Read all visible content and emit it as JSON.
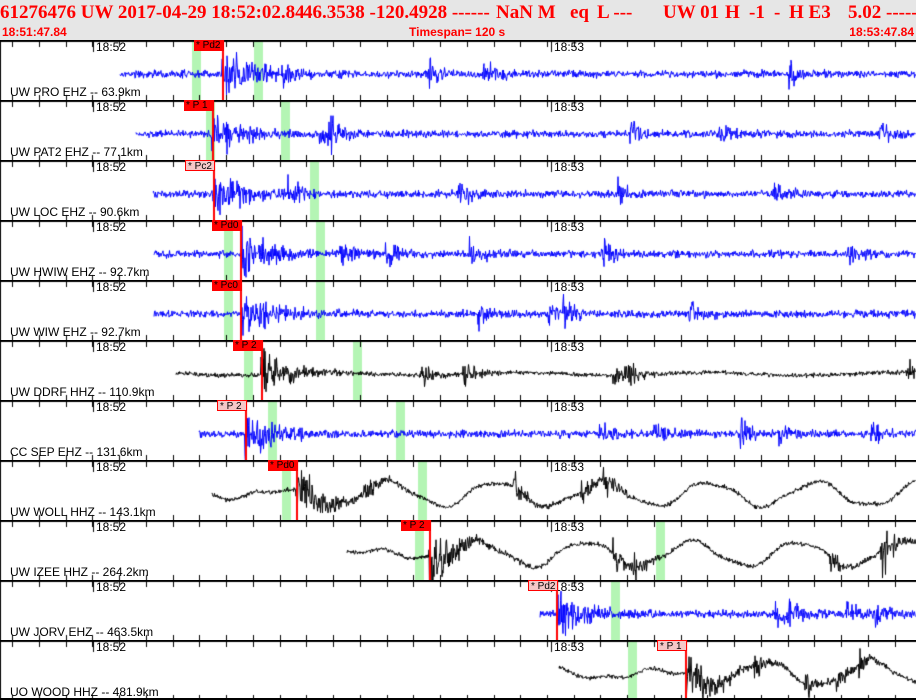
{
  "header": {
    "title_parts": [
      "61276476 UW 2017-04-29 18:52:02.84",
      "46.3538 -120.4928 ------",
      "NaN M",
      "eq",
      "L ---",
      "UW 01",
      "H",
      "-1",
      "-",
      "H E3",
      "5.02",
      "-----"
    ],
    "start_time": "18:51:47.84",
    "timespan": "Timespan= 120 s",
    "end_time": "18:53:47.84"
  },
  "view": {
    "start": "18:51:47.84",
    "span_seconds": 120
  },
  "colors": {
    "header_text": "#ff0000",
    "header_bg": "#e6e6e6",
    "short_period": "#0000ff",
    "broadband": "#000000",
    "pick_line": "#ff0000",
    "window_band": "#b4f5b4"
  },
  "minute_labels": [
    "18:52",
    "18:53"
  ],
  "channels": [
    {
      "label": "UW PRO EHZ -- 63.9km",
      "color": "#0000ff",
      "trace_start": "18:52:03.6",
      "pick": {
        "label": "* Pd2",
        "time": "18:52:16.9",
        "style": "solid"
      },
      "bands": [
        "18:52:13.5",
        "18:52:21.6"
      ],
      "kind": "sp"
    },
    {
      "label": "UW PAT2 EHZ -- 77.1km",
      "color": "#0000ff",
      "trace_start": "18:52:05.7",
      "pick": {
        "label": "* P 1",
        "time": "18:52:15.6",
        "style": "solid"
      },
      "bands": [
        "18:52:15.4",
        "18:52:25.2"
      ],
      "kind": "sp"
    },
    {
      "label": "UW LOC EHZ -- 90.6km",
      "color": "#0000ff",
      "trace_start": "18:52:07.9",
      "pick": {
        "label": "* Pc2",
        "time": "18:52:15.7",
        "style": "light"
      },
      "bands": [
        "18:52:29.0"
      ],
      "kind": "sp"
    },
    {
      "label": "UW HWIW EHZ -- 92.7km",
      "color": "#0000ff",
      "trace_start": "18:52:08.1",
      "pick": {
        "label": "* Pd0",
        "time": "18:52:19.3",
        "style": "solid"
      },
      "bands": [
        "18:52:17.7",
        "18:52:29.8"
      ],
      "kind": "sp"
    },
    {
      "label": "UW WIW EHZ -- 92.7km",
      "color": "#0000ff",
      "trace_start": "18:52:08.1",
      "pick": {
        "label": "* Pc0",
        "time": "18:52:19.3",
        "style": "solid"
      },
      "bands": [
        "18:52:17.7",
        "18:52:29.8"
      ],
      "kind": "sp"
    },
    {
      "label": "UW DDRF HHZ -- 110.9km",
      "color": "#000000",
      "trace_start": "18:52:11.0",
      "pick": {
        "label": "* P 2",
        "time": "18:52:22.0",
        "style": "solid"
      },
      "bands": [
        "18:52:20.3",
        "18:52:34.6"
      ],
      "kind": "bb"
    },
    {
      "label": "CC SEP EHZ -- 131.6km",
      "color": "#0000ff",
      "trace_start": "18:52:14.0",
      "pick": {
        "label": "* P 2",
        "time": "18:52:19.9",
        "style": "light"
      },
      "bands": [
        "18:52:23.5",
        "18:52:40.2"
      ],
      "kind": "sp"
    },
    {
      "label": "UW WOLL HHZ -- 143.1km",
      "color": "#000000",
      "trace_start": "18:52:15.7",
      "pick": {
        "label": "* Pd0",
        "time": "18:52:26.6",
        "style": "solid"
      },
      "bands": [
        "18:52:25.3",
        "18:52:43.1"
      ],
      "kind": "lp"
    },
    {
      "label": "UW IZEE HHZ -- 264.2km",
      "color": "#000000",
      "trace_start": "18:52:33.3",
      "pick": {
        "label": "* P 2",
        "time": "18:52:44.0",
        "style": "solid"
      },
      "bands": [
        "18:52:42.7",
        "18:53:14.3"
      ],
      "kind": "lp"
    },
    {
      "label": "UW JORV EHZ -- 463.5km",
      "color": "#0000ff",
      "trace_start": "18:52:58.7",
      "pick": {
        "label": "* Pd2",
        "time": "18:53:00.7",
        "style": "light"
      },
      "bands": [
        "18:53:08.4"
      ],
      "kind": "sp"
    },
    {
      "label": "UO WOOD HHZ -- 481.9km",
      "color": "#000000",
      "trace_start": "18:53:01.1",
      "pick": {
        "label": "* P 1",
        "time": "18:53:17.6",
        "style": "light"
      },
      "bands": [
        "18:53:10.6"
      ],
      "kind": "lp"
    }
  ]
}
